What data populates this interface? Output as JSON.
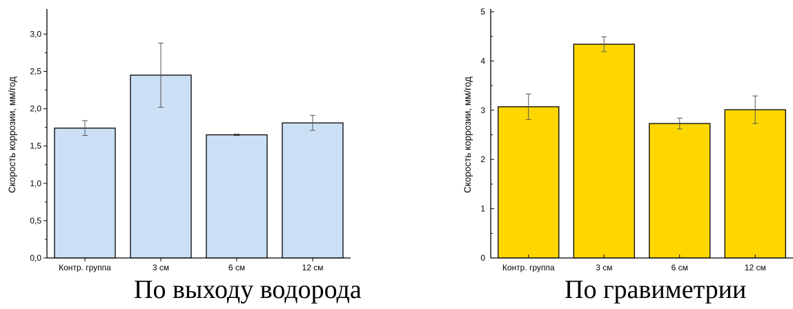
{
  "chart_data": [
    {
      "type": "bar",
      "title": "По выходу водорода",
      "ylabel": "Скорость коррозии, мм/год",
      "xlabel": "",
      "categories": [
        "Контр. группа",
        "3 см",
        "6 см",
        "12 см"
      ],
      "values": [
        1.74,
        2.45,
        1.65,
        1.81
      ],
      "errors": [
        0.1,
        0.43,
        0.01,
        0.1
      ],
      "ylim": [
        0,
        3.3
      ],
      "yticks": [
        0.0,
        0.5,
        1.0,
        1.5,
        2.0,
        2.5,
        3.0
      ],
      "ytick_labels": [
        "0,0",
        "0,5",
        "1,0",
        "1,5",
        "2,0",
        "2,5",
        "3,0"
      ],
      "bar_color": "#cce0f5",
      "grid": false
    },
    {
      "type": "bar",
      "title": "По гравиметрии",
      "ylabel": "Скорость коррозии, мм/год",
      "xlabel": "",
      "categories": [
        "Контр. группа",
        "3 см",
        "6 см",
        "12 см"
      ],
      "values": [
        3.07,
        4.34,
        2.73,
        3.01
      ],
      "errors": [
        0.26,
        0.15,
        0.11,
        0.28
      ],
      "ylim": [
        0,
        5
      ],
      "yticks": [
        0,
        1,
        2,
        3,
        4,
        5
      ],
      "ytick_labels": [
        "0",
        "1",
        "2",
        "3",
        "4",
        "5"
      ],
      "bar_color": "#ffd700",
      "grid": false
    }
  ]
}
